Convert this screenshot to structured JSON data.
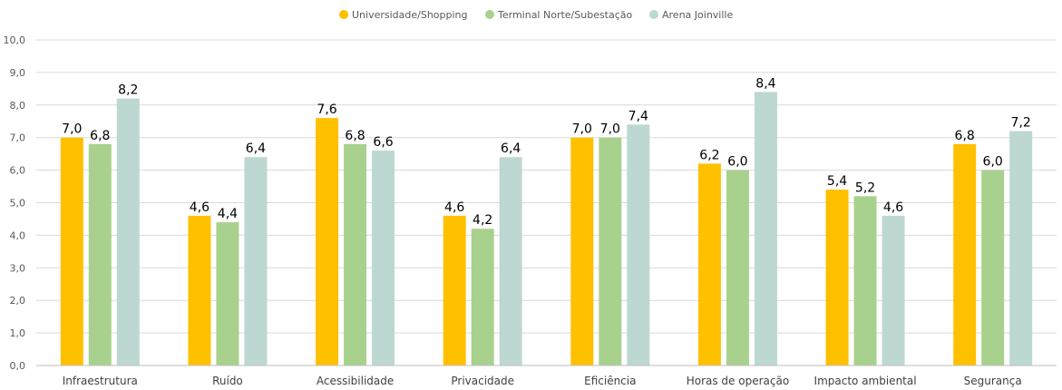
{
  "chart_data": {
    "type": "bar",
    "categories": [
      "Infraestrutura",
      "Ruído",
      "Acessibilidade",
      "Privacidade",
      "Eficiência",
      "Horas de operação",
      "Impacto ambiental",
      "Segurança"
    ],
    "series": [
      {
        "name": "Universidade/Shopping",
        "color": "#FFC000",
        "values": [
          7.0,
          4.6,
          7.6,
          4.6,
          7.0,
          6.2,
          5.4,
          6.8
        ],
        "labels": [
          "7,0",
          "4,6",
          "7,6",
          "4,6",
          "7,0",
          "6,2",
          "5,4",
          "6,8"
        ]
      },
      {
        "name": "Terminal Norte/Subestação",
        "color": "#A9D18E",
        "values": [
          6.8,
          4.4,
          6.8,
          4.2,
          7.0,
          6.0,
          5.2,
          6.0
        ],
        "labels": [
          "6,8",
          "4,4",
          "6,8",
          "4,2",
          "7,0",
          "6,0",
          "5,2",
          "6,0"
        ]
      },
      {
        "name": "Arena Joinville",
        "color": "#BDD7D3",
        "values": [
          8.2,
          6.4,
          6.6,
          6.4,
          7.4,
          8.4,
          4.6,
          7.2
        ],
        "labels": [
          "8,2",
          "6,4",
          "6,6",
          "6,4",
          "7,4",
          "8,4",
          "4,6",
          "7,2"
        ]
      }
    ],
    "ylim": [
      0,
      10
    ],
    "yticks": [
      "0,0",
      "1,0",
      "2,0",
      "3,0",
      "4,0",
      "5,0",
      "6,0",
      "7,0",
      "8,0",
      "9,0",
      "10,0"
    ],
    "grid": true,
    "legend_position": "top-center",
    "title": "",
    "xlabel": "",
    "ylabel": ""
  }
}
